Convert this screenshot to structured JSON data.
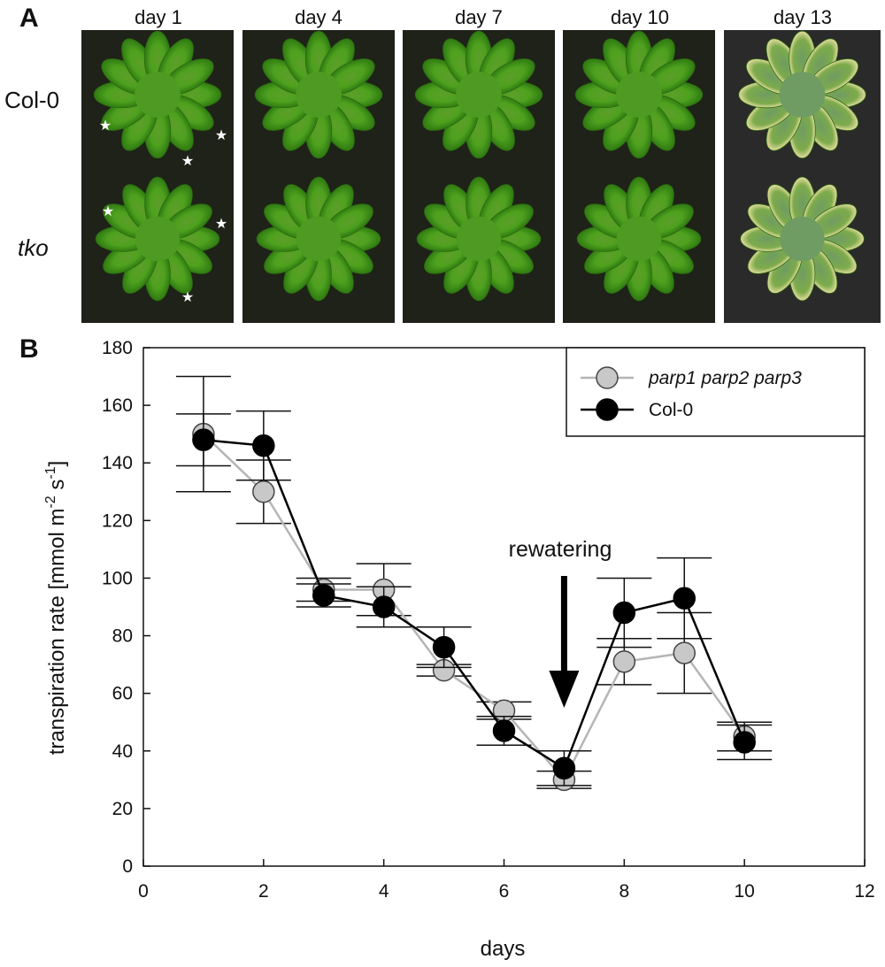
{
  "panel_a": {
    "letter": "A",
    "columns": [
      "day 1",
      "day 4",
      "day 7",
      "day 10",
      "day 13"
    ],
    "rows": [
      {
        "label": "Col-0",
        "italic": false
      },
      {
        "label": "tko",
        "italic": true
      }
    ],
    "star_marker": "★"
  },
  "panel_b": {
    "letter": "B",
    "annotation": "rewatering"
  },
  "chart_data": {
    "type": "line",
    "xlabel": "days",
    "ylabel_main": "transpiration rate [mmol m",
    "ylabel_sup1": "-2",
    "ylabel_mid": " s",
    "ylabel_sup2": "-1",
    "ylabel_end": "]",
    "xlim": [
      0,
      12
    ],
    "ylim": [
      0,
      180
    ],
    "xticks": [
      0,
      2,
      4,
      6,
      8,
      10,
      12
    ],
    "yticks": [
      0,
      20,
      40,
      60,
      80,
      100,
      120,
      140,
      160,
      180
    ],
    "grid": false,
    "legend_position": "top-right",
    "series": [
      {
        "name": "parp1 parp2 parp3",
        "italic": true,
        "marker_fill": "#c8c8c8",
        "line_color": "#b5b5b5",
        "x": [
          1,
          2,
          3,
          4,
          5,
          6,
          7,
          8,
          9,
          10
        ],
        "y": [
          150,
          130,
          96,
          96,
          68,
          54,
          30,
          71,
          74,
          45
        ],
        "err": [
          20,
          11,
          4,
          9,
          2,
          3,
          3,
          8,
          14,
          5
        ]
      },
      {
        "name": "Col-0",
        "italic": false,
        "marker_fill": "#000000",
        "line_color": "#000000",
        "x": [
          1,
          2,
          3,
          4,
          5,
          6,
          7,
          8,
          9,
          10
        ],
        "y": [
          148,
          146,
          94,
          90,
          76,
          47,
          34,
          88,
          93,
          43
        ],
        "err": [
          9,
          12,
          4,
          7,
          7,
          5,
          6,
          12,
          14,
          6
        ]
      }
    ],
    "annotation_arrow_x": 7
  }
}
